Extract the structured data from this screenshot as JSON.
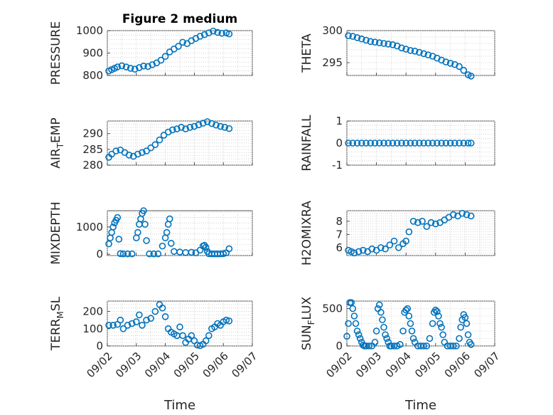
{
  "figure": {
    "title": "Figure 2 medium",
    "marker_color": "#0072BD",
    "grid": true
  },
  "chart_data": [
    {
      "id": "pressure",
      "type": "scatter",
      "ylabel": "PRESSURE",
      "title": "Figure 2 medium",
      "xlim": [
        0,
        5
      ],
      "ylim": [
        800,
        1000
      ],
      "yticks": [
        800,
        900,
        1000
      ],
      "show_xticks": false,
      "x": [
        0.05,
        0.15,
        0.25,
        0.35,
        0.5,
        0.65,
        0.8,
        0.95,
        1.1,
        1.25,
        1.4,
        1.55,
        1.7,
        1.85,
        2.0,
        2.15,
        2.3,
        2.45,
        2.6,
        2.75,
        2.9,
        3.05,
        3.2,
        3.35,
        3.5,
        3.65,
        3.8,
        3.95,
        4.1,
        4.2
      ],
      "y": [
        820,
        826,
        832,
        838,
        843,
        838,
        832,
        828,
        835,
        842,
        840,
        848,
        856,
        868,
        885,
        905,
        918,
        930,
        948,
        942,
        955,
        965,
        975,
        982,
        990,
        998,
        992,
        988,
        990,
        985
      ]
    },
    {
      "id": "theta",
      "type": "scatter",
      "ylabel": "THETA",
      "xlim": [
        0,
        5
      ],
      "ylim": [
        293,
        300
      ],
      "yticks": [
        295,
        300
      ],
      "show_xticks": false,
      "x": [
        0.05,
        0.2,
        0.35,
        0.5,
        0.65,
        0.8,
        0.95,
        1.1,
        1.25,
        1.4,
        1.55,
        1.7,
        1.85,
        2.0,
        2.15,
        2.3,
        2.45,
        2.6,
        2.75,
        2.9,
        3.05,
        3.2,
        3.35,
        3.5,
        3.65,
        3.8,
        3.95,
        4.1,
        4.2
      ],
      "y": [
        299.2,
        299.1,
        298.9,
        298.7,
        298.5,
        298.3,
        298.2,
        298.1,
        298.0,
        297.9,
        297.8,
        297.6,
        297.3,
        297.1,
        296.9,
        296.8,
        296.6,
        296.4,
        296.2,
        296.0,
        295.7,
        295.4,
        295.1,
        294.9,
        294.7,
        294.4,
        293.8,
        293.1,
        292.9
      ]
    },
    {
      "id": "airtemp",
      "type": "scatter",
      "ylabel": "AIR",
      "ylabel_sub": "T",
      "ylabel_rest": "EMP",
      "xlim": [
        0,
        5
      ],
      "ylim": [
        280,
        294
      ],
      "yticks": [
        280,
        285,
        290
      ],
      "show_xticks": false,
      "x": [
        0.05,
        0.15,
        0.3,
        0.45,
        0.6,
        0.75,
        0.9,
        1.05,
        1.2,
        1.35,
        1.5,
        1.65,
        1.8,
        1.95,
        2.1,
        2.25,
        2.4,
        2.55,
        2.7,
        2.85,
        3.0,
        3.15,
        3.3,
        3.45,
        3.6,
        3.75,
        3.9,
        4.05,
        4.2
      ],
      "y": [
        282.5,
        283.5,
        284.5,
        284.8,
        284,
        283.2,
        282.8,
        283.5,
        284,
        284.5,
        285.5,
        286.5,
        288,
        289.5,
        290.5,
        291.2,
        291.5,
        292,
        291.5,
        292,
        292.3,
        292.8,
        293.3,
        293.8,
        293.2,
        292.7,
        292.3,
        292,
        291.6
      ]
    },
    {
      "id": "rainfall",
      "type": "scatter",
      "ylabel": "RAINFALL",
      "xlim": [
        0,
        5
      ],
      "ylim": [
        -1,
        1
      ],
      "yticks": [
        -1,
        0,
        1
      ],
      "show_xticks": false,
      "x": [
        0.05,
        0.2,
        0.35,
        0.5,
        0.65,
        0.8,
        0.95,
        1.1,
        1.25,
        1.4,
        1.55,
        1.7,
        1.85,
        2.0,
        2.15,
        2.3,
        2.45,
        2.6,
        2.75,
        2.9,
        3.05,
        3.2,
        3.35,
        3.5,
        3.65,
        3.8,
        3.95,
        4.1,
        4.2
      ],
      "y": [
        0,
        0,
        0,
        0,
        0,
        0,
        0,
        0,
        0,
        0,
        0,
        0,
        0,
        0,
        0,
        0,
        0,
        0,
        0,
        0,
        0,
        0,
        0,
        0,
        0,
        0,
        0,
        0,
        0
      ]
    },
    {
      "id": "mixdepth",
      "type": "scatter",
      "ylabel": "MIXDEPTH",
      "xlim": [
        0,
        5
      ],
      "ylim": [
        -50,
        1600
      ],
      "yticks": [
        0,
        1000
      ],
      "show_xticks": false,
      "x": [
        0.05,
        0.1,
        0.15,
        0.2,
        0.25,
        0.3,
        0.35,
        0.4,
        0.45,
        0.55,
        0.7,
        0.85,
        1.0,
        1.05,
        1.1,
        1.15,
        1.2,
        1.25,
        1.3,
        1.35,
        1.45,
        1.6,
        1.75,
        1.9,
        2.0,
        2.05,
        2.1,
        2.15,
        2.2,
        2.3,
        2.5,
        2.7,
        2.9,
        3.05,
        3.2,
        3.3,
        3.35,
        3.4,
        3.45,
        3.5,
        3.6,
        3.7,
        3.8,
        3.9,
        4.0,
        4.1,
        4.2
      ],
      "y": [
        380,
        600,
        800,
        1000,
        1150,
        1250,
        1350,
        550,
        20,
        10,
        10,
        10,
        600,
        800,
        1100,
        1300,
        1500,
        1600,
        1100,
        500,
        10,
        10,
        10,
        300,
        600,
        800,
        1100,
        1300,
        400,
        100,
        80,
        60,
        70,
        50,
        150,
        300,
        330,
        250,
        100,
        20,
        10,
        10,
        10,
        10,
        20,
        50,
        200
      ]
    },
    {
      "id": "h2omixra",
      "type": "scatter",
      "ylabel": "H2OMIXRA",
      "xlim": [
        0,
        5
      ],
      "ylim": [
        5.4,
        8.8
      ],
      "yticks": [
        6,
        7,
        8
      ],
      "show_xticks": false,
      "x": [
        0.05,
        0.15,
        0.25,
        0.4,
        0.55,
        0.7,
        0.85,
        1.0,
        1.15,
        1.3,
        1.45,
        1.6,
        1.75,
        1.9,
        2.0,
        2.1,
        2.25,
        2.4,
        2.55,
        2.7,
        2.85,
        3.0,
        3.15,
        3.3,
        3.45,
        3.6,
        3.75,
        3.9,
        4.05,
        4.2
      ],
      "y": [
        5.8,
        5.7,
        5.6,
        5.7,
        5.8,
        5.7,
        5.9,
        5.8,
        6.0,
        5.9,
        6.2,
        6.5,
        6.0,
        6.3,
        6.5,
        7.2,
        8.0,
        7.9,
        8.0,
        7.6,
        7.9,
        7.8,
        7.9,
        8.1,
        8.3,
        8.5,
        8.4,
        8.6,
        8.5,
        8.4
      ]
    },
    {
      "id": "terrmsl",
      "type": "scatter",
      "ylabel": "TERR",
      "ylabel_sub": "M",
      "ylabel_rest": "SL",
      "xlim": [
        0,
        5
      ],
      "ylim": [
        0,
        260
      ],
      "yticks": [
        0,
        100,
        200
      ],
      "show_xticks": true,
      "xticks": [
        0,
        1,
        2,
        3,
        4,
        5
      ],
      "xticklabels": [
        "09/02",
        "09/03",
        "09/04",
        "09/05",
        "09/06",
        "09/07"
      ],
      "xlabel": "Time",
      "x": [
        0.05,
        0.2,
        0.35,
        0.45,
        0.55,
        0.7,
        0.85,
        1.0,
        1.1,
        1.2,
        1.35,
        1.5,
        1.65,
        1.8,
        1.9,
        2.0,
        2.1,
        2.2,
        2.3,
        2.4,
        2.5,
        2.6,
        2.7,
        2.8,
        2.9,
        3.0,
        3.1,
        3.2,
        3.3,
        3.4,
        3.5,
        3.6,
        3.7,
        3.8,
        3.9,
        4.0,
        4.1,
        4.2
      ],
      "y": [
        120,
        120,
        125,
        150,
        100,
        120,
        130,
        140,
        180,
        120,
        150,
        160,
        200,
        240,
        220,
        170,
        100,
        80,
        70,
        60,
        110,
        60,
        20,
        40,
        60,
        30,
        5,
        2,
        10,
        30,
        60,
        100,
        110,
        130,
        120,
        140,
        150,
        145
      ]
    },
    {
      "id": "sunflux",
      "type": "scatter",
      "ylabel": "SUN",
      "ylabel_sub": "F",
      "ylabel_rest": "LUX",
      "xlim": [
        0,
        5
      ],
      "ylim": [
        0,
        600
      ],
      "yticks": [
        0,
        500
      ],
      "show_xticks": true,
      "xticks": [
        0,
        1,
        2,
        3,
        4,
        5
      ],
      "xticklabels": [
        "09/02",
        "09/03",
        "09/04",
        "09/05",
        "09/06",
        "09/07"
      ],
      "xlabel": "Time",
      "x": [
        0.0,
        0.05,
        0.1,
        0.15,
        0.2,
        0.25,
        0.3,
        0.35,
        0.4,
        0.45,
        0.5,
        0.55,
        0.6,
        0.65,
        0.75,
        0.85,
        0.95,
        1.0,
        1.05,
        1.1,
        1.15,
        1.2,
        1.25,
        1.3,
        1.35,
        1.4,
        1.45,
        1.5,
        1.6,
        1.7,
        1.8,
        1.9,
        1.95,
        2.0,
        2.05,
        2.1,
        2.15,
        2.2,
        2.25,
        2.3,
        2.4,
        2.5,
        2.6,
        2.7,
        2.8,
        2.9,
        2.95,
        3.0,
        3.05,
        3.1,
        3.15,
        3.2,
        3.25,
        3.3,
        3.4,
        3.5,
        3.6,
        3.7,
        3.8,
        3.85,
        3.9,
        3.95,
        4.0,
        4.05,
        4.1,
        4.15,
        4.2
      ],
      "y": [
        130,
        300,
        580,
        580,
        500,
        400,
        300,
        200,
        150,
        100,
        50,
        10,
        0,
        0,
        0,
        0,
        50,
        200,
        500,
        550,
        450,
        350,
        250,
        150,
        100,
        50,
        0,
        0,
        0,
        0,
        20,
        200,
        450,
        480,
        500,
        400,
        300,
        200,
        100,
        50,
        0,
        0,
        0,
        0,
        100,
        300,
        450,
        480,
        460,
        400,
        300,
        250,
        150,
        50,
        0,
        0,
        0,
        0,
        100,
        250,
        350,
        420,
        380,
        300,
        150,
        50,
        20
      ]
    }
  ]
}
